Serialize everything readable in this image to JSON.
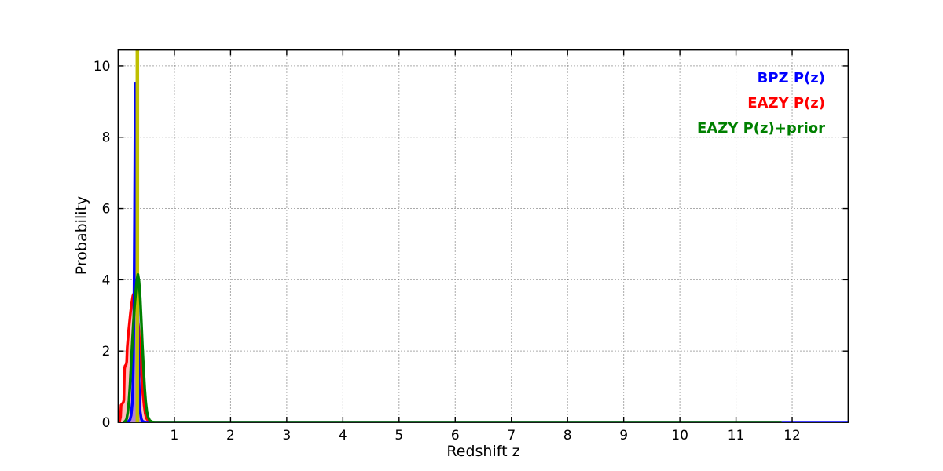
{
  "figure": {
    "background": "#ffffff"
  },
  "axes": {
    "xlabel": "Redshift z",
    "ylabel": "Probability"
  },
  "chart_data": {
    "type": "line",
    "title": "",
    "xlabel": "Redshift z",
    "ylabel": "Probability",
    "xlim": [
      0,
      13
    ],
    "ylim": [
      0,
      10.45
    ],
    "xticks": [
      1,
      2,
      3,
      4,
      5,
      6,
      7,
      8,
      9,
      10,
      11,
      12
    ],
    "yticks": [
      0,
      2,
      4,
      6,
      8,
      10
    ],
    "grid": {
      "show": true,
      "style": "dotted",
      "color": "#555555"
    },
    "legend": {
      "position": "upper-right",
      "style": "colored-text-only"
    },
    "series": [
      {
        "name": "BPZ P(z)",
        "color": "#0000ff",
        "fill": "rgba(0,0,255,0.30)",
        "points": [
          [
            0.14,
            0
          ],
          [
            0.18,
            0.02
          ],
          [
            0.21,
            0.08
          ],
          [
            0.23,
            0.2
          ],
          [
            0.25,
            0.55
          ],
          [
            0.26,
            1.0
          ],
          [
            0.27,
            1.8
          ],
          [
            0.28,
            3.2
          ],
          [
            0.29,
            5.6
          ],
          [
            0.295,
            7.3
          ],
          [
            0.3,
            8.9
          ],
          [
            0.305,
            9.5
          ],
          [
            0.31,
            9.35
          ],
          [
            0.315,
            8.6
          ],
          [
            0.32,
            7.7
          ],
          [
            0.33,
            6.1
          ],
          [
            0.34,
            4.5
          ],
          [
            0.35,
            3.1
          ],
          [
            0.36,
            2.0
          ],
          [
            0.37,
            1.15
          ],
          [
            0.38,
            0.6
          ],
          [
            0.39,
            0.3
          ],
          [
            0.41,
            0.1
          ],
          [
            0.43,
            0.03
          ],
          [
            0.46,
            0.01
          ],
          [
            0.5,
            0
          ],
          [
            13,
            0
          ]
        ]
      },
      {
        "name": "EAZY P(z)",
        "color": "#ff0000",
        "fill": "rgba(255,0,0,0.25)",
        "points": [
          [
            0.02,
            0
          ],
          [
            0.04,
            0.15
          ],
          [
            0.05,
            0.48
          ],
          [
            0.07,
            0.52
          ],
          [
            0.09,
            0.56
          ],
          [
            0.1,
            0.62
          ],
          [
            0.11,
            1.5
          ],
          [
            0.12,
            1.58
          ],
          [
            0.14,
            1.62
          ],
          [
            0.15,
            1.7
          ],
          [
            0.16,
            2.1
          ],
          [
            0.18,
            2.5
          ],
          [
            0.2,
            2.8
          ],
          [
            0.22,
            3.1
          ],
          [
            0.24,
            3.35
          ],
          [
            0.26,
            3.55
          ],
          [
            0.28,
            3.62
          ],
          [
            0.3,
            3.55
          ],
          [
            0.32,
            3.35
          ],
          [
            0.34,
            3.05
          ],
          [
            0.36,
            2.7
          ],
          [
            0.38,
            2.25
          ],
          [
            0.4,
            1.75
          ],
          [
            0.42,
            1.25
          ],
          [
            0.44,
            0.8
          ],
          [
            0.46,
            0.48
          ],
          [
            0.48,
            0.25
          ],
          [
            0.5,
            0.12
          ],
          [
            0.53,
            0.05
          ],
          [
            0.57,
            0.01
          ],
          [
            0.62,
            0
          ],
          [
            11.8,
            0
          ]
        ]
      },
      {
        "name": "EAZY P(z)+prior",
        "color": "#008000",
        "fill": null,
        "points": [
          [
            0.1,
            0
          ],
          [
            0.13,
            0.04
          ],
          [
            0.15,
            0.1
          ],
          [
            0.17,
            0.28
          ],
          [
            0.19,
            0.6
          ],
          [
            0.21,
            1.05
          ],
          [
            0.23,
            1.65
          ],
          [
            0.25,
            2.25
          ],
          [
            0.27,
            2.8
          ],
          [
            0.29,
            3.25
          ],
          [
            0.31,
            3.65
          ],
          [
            0.33,
            3.98
          ],
          [
            0.35,
            4.15
          ],
          [
            0.37,
            3.95
          ],
          [
            0.39,
            3.5
          ],
          [
            0.41,
            2.85
          ],
          [
            0.43,
            2.15
          ],
          [
            0.45,
            1.5
          ],
          [
            0.47,
            0.95
          ],
          [
            0.49,
            0.55
          ],
          [
            0.51,
            0.3
          ],
          [
            0.53,
            0.15
          ],
          [
            0.56,
            0.05
          ],
          [
            0.6,
            0.01
          ],
          [
            0.65,
            0
          ],
          [
            11.8,
            0
          ]
        ]
      },
      {
        "name": "redshift-marker",
        "type": "vline",
        "color": "#bfbf00",
        "x": 0.34
      }
    ]
  }
}
